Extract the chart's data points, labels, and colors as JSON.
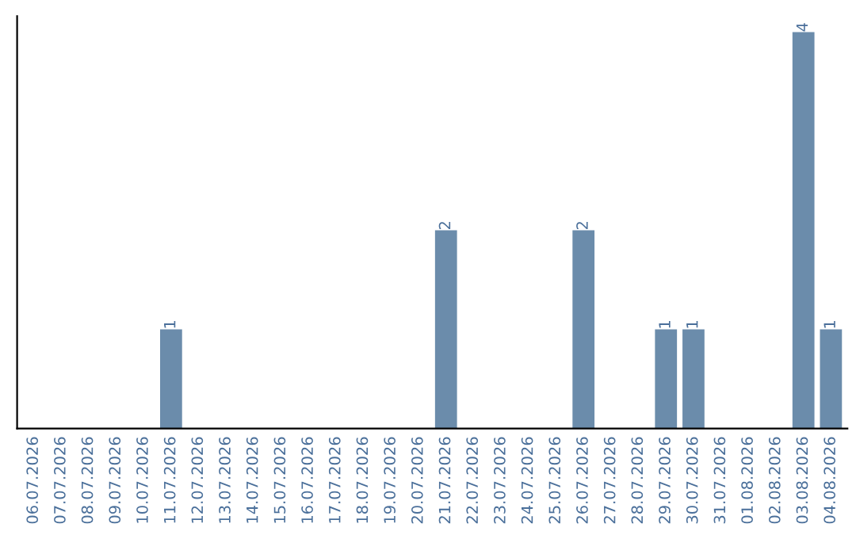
{
  "chart_data": {
    "type": "bar",
    "categories": [
      "06.07.2026",
      "07.07.2026",
      "08.07.2026",
      "09.07.2026",
      "10.07.2026",
      "11.07.2026",
      "12.07.2026",
      "13.07.2026",
      "14.07.2026",
      "15.07.2026",
      "16.07.2026",
      "17.07.2026",
      "18.07.2026",
      "19.07.2026",
      "20.07.2026",
      "21.07.2026",
      "22.07.2026",
      "23.07.2026",
      "24.07.2026",
      "25.07.2026",
      "26.07.2026",
      "27.07.2026",
      "28.07.2026",
      "29.07.2026",
      "30.07.2026",
      "31.07.2026",
      "01.08.2026",
      "02.08.2026",
      "03.08.2026",
      "04.08.2026"
    ],
    "values": [
      0,
      0,
      0,
      0,
      0,
      1,
      0,
      0,
      0,
      0,
      0,
      0,
      0,
      0,
      0,
      2,
      0,
      0,
      0,
      0,
      2,
      0,
      0,
      1,
      1,
      0,
      0,
      0,
      4,
      1
    ],
    "value_labels": [
      null,
      null,
      null,
      null,
      null,
      "1",
      null,
      null,
      null,
      null,
      null,
      null,
      null,
      null,
      null,
      "2",
      null,
      null,
      null,
      null,
      "2",
      null,
      null,
      "1",
      "1",
      null,
      null,
      null,
      "4",
      "1"
    ],
    "color": "#6b8cab",
    "grid": false,
    "legend": false
  }
}
